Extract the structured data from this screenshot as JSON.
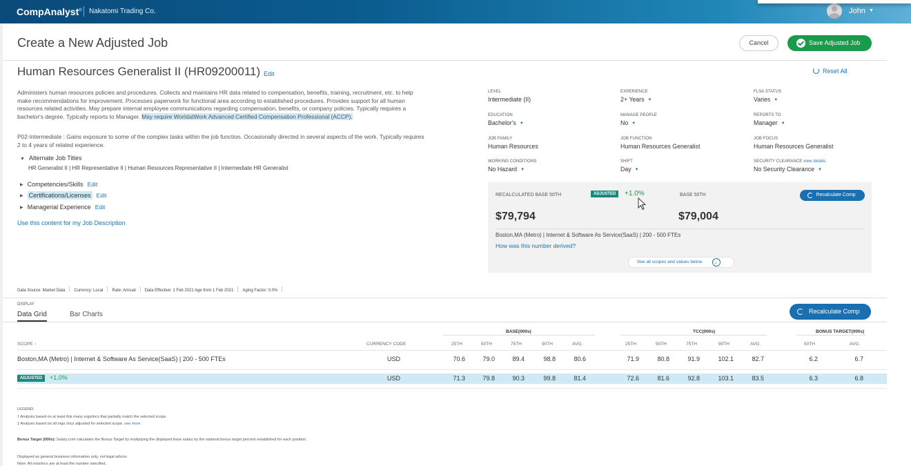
{
  "header": {
    "brand": "CompAnalyst",
    "brand_mark": "®",
    "company": "Nakatomi Trading Co.",
    "user": "John"
  },
  "page": {
    "title": "Create a New Adjusted Job",
    "cancel_label": "Cancel",
    "save_label": "Save Adjusted Job",
    "job_title": "Human Resources Generalist II (HR09200011)",
    "edit_label": "Edit",
    "reset_all": "Reset All"
  },
  "description": {
    "text_main": "Administers human resources policies and procedures. Collects and maintains HR data related to compensation, benefits, training, recruitment, etc. to help make recommendations for improvement. Processes paperwork for functional area according to established procedures. Provides support for all human resources related activities. May prepare internal employee communications regarding compensation, benefits, or company policies. Typically requires a bachelor's degree. Typically reports to Manager. ",
    "text_highlight": "May require WorldatWork Advanced Certified Compensation Professional (ACCP).",
    "level_text": "P02-Intermediate : Gains exposure to some of the complex tasks within the job function. Occasionally directed in several aspects of the work. Typically requires 2 to 4 years of related experience.",
    "alt_titles_heading": "Alternate Job Titles",
    "alt_titles": "HR Generalist II | HR Representative II | Human Resources Representative II | Intermediate HR Generalist",
    "sections": [
      "Competencies/Skills",
      "Certifications/Licenses",
      "Managerial Experience"
    ],
    "use_content": "Use this content for my Job Description"
  },
  "attributes": [
    {
      "label": "LEVEL",
      "value": "Intermediate (II)",
      "dropdown": false
    },
    {
      "label": "EXPERIENCE",
      "value": "2+ Years",
      "dropdown": true
    },
    {
      "label": "FLSA STATUS",
      "value": "Varies",
      "dropdown": true
    },
    {
      "label": "EDUCATION",
      "value": "Bachelor's",
      "dropdown": true
    },
    {
      "label": "MANAGE PEOPLE",
      "value": "No",
      "dropdown": true
    },
    {
      "label": "REPORTS TO",
      "value": "Manager",
      "dropdown": true
    },
    {
      "label": "JOB FAMILY",
      "value": "Human Resources",
      "dropdown": false
    },
    {
      "label": "JOB FUNCTION",
      "value": "Human Resources Generalist",
      "dropdown": false
    },
    {
      "label": "JOB FOCUS",
      "value": "Human Resources Generalist",
      "dropdown": false
    },
    {
      "label": "WORKING CONDITIONS",
      "value": "No Hazard",
      "dropdown": true
    },
    {
      "label": "SHIFT",
      "value": "Day",
      "dropdown": true
    },
    {
      "label": "SECURITY CLEARANCE",
      "value": "No Security Clearance",
      "dropdown": true
    }
  ],
  "view_details": "view details",
  "comp": {
    "recalc_label": "RECALCULATED BASE 50TH",
    "adjusted_badge": "ADJUSTED",
    "adjust_pct": "+1.0%",
    "base_label": "BASE 50TH",
    "recalc_button": "Recalculate Comp",
    "recalc_value": "$79,794",
    "base_value": "$79,004",
    "scope": "Boston,MA (Metro) | Internet & Software As Service(SaaS) | 200 - 500 FTEs",
    "how_link": "How was this number derived?",
    "see_all": "See all scopes and values below"
  },
  "meta": {
    "items": [
      "Data Source: Market Data",
      "Currency: Local",
      "Rate: Annual",
      "Data Effective: 1 Feb 2021 Age from 1 Feb 2021",
      "Aging Factor: 0.0%"
    ]
  },
  "grid": {
    "display_label": "DISPLAY",
    "tabs": [
      "Data Grid",
      "Bar Charts"
    ],
    "recalc_button": "Recalculate Comp",
    "groups": [
      "BASE(000s)",
      "TCC(000s)",
      "BONUS TARGET(000s)"
    ],
    "scope_header": "SCOPE",
    "sort_arrow": "↑",
    "currency_header": "CURRENCY CODE",
    "columns": [
      "25TH",
      "50TH",
      "75TH",
      "90TH",
      "AVG.",
      "25TH",
      "50TH",
      "75TH",
      "90TH",
      "AVG.",
      "50TH",
      "AVG."
    ],
    "rows": [
      {
        "scope": "Boston,MA (Metro) | Internet & Software As Service(SaaS) | 200 - 500 FTEs",
        "currency": "USD",
        "values": [
          "70.6",
          "79.0",
          "89.4",
          "98.8",
          "80.6",
          "71.9",
          "80.8",
          "91.9",
          "102.1",
          "82.7",
          "6.2",
          "6.7"
        ]
      },
      {
        "scope_badge": "ADJUSTED",
        "scope_pct": "+1.0%",
        "currency": "USD",
        "values": [
          "71.3",
          "79.8",
          "90.3",
          "99.8",
          "81.4",
          "72.6",
          "81.6",
          "92.8",
          "103.1",
          "83.5",
          "6.3",
          "6.8"
        ]
      }
    ]
  },
  "legend": {
    "title": "LEGEND:",
    "line1": "† Analysis based on at least this many orgs/incs that partially match the selected scope.",
    "line2": "‡ Analysis based on all orgs /incs adjusted for selected scope.",
    "see_more": "see more",
    "bonus_label": "Bonus Target (000s):",
    "bonus_text": "Salary.com calculates the Bonus Target by multiplying the displayed base salary by the national bonus target percent established for each position.",
    "disclaimer": "Displayed as general business information only, not legal advice.",
    "note": "Note: All orgs/incs are at least the number specified."
  },
  "colors": {
    "brand_blue": "#0b5c8f",
    "save_green": "#1a9a4b",
    "recalc_blue": "#1a6fb0",
    "adjusted_teal": "#1a8a7a",
    "highlight": "#cfeaf4"
  }
}
